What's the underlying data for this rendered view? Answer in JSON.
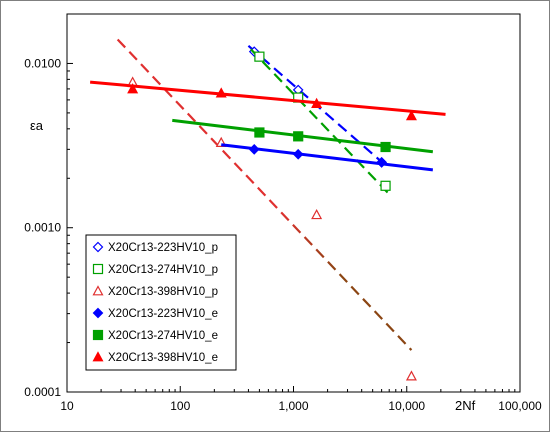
{
  "chart_data": {
    "type": "scatter",
    "title": "",
    "xlabel": "2Nf",
    "ylabel": "εa",
    "xscale": "log",
    "yscale": "log",
    "xlim": [
      10,
      100000
    ],
    "ylim": [
      0.0001,
      0.02
    ],
    "x_ticks": [
      10,
      100,
      1000,
      10000,
      100000
    ],
    "x_tick_labels": [
      "10",
      "100",
      "1,000",
      "10,000",
      "100,000"
    ],
    "y_ticks": [
      0.0001,
      0.001,
      0.01
    ],
    "y_tick_labels": [
      "0.0001",
      "0.0010",
      "0.0100"
    ],
    "grid": false,
    "legend_position": "bottom-left",
    "series": [
      {
        "name": "X20Cr13-223HV10_p",
        "color": "#0000ff",
        "marker": "diamond-open",
        "points": [
          [
            450,
            0.0118
          ],
          [
            1100,
            0.0069
          ],
          [
            6000,
            0.0025
          ]
        ],
        "fit": {
          "x": [
            400,
            6500
          ],
          "y": [
            0.0128,
            0.0024
          ],
          "style": "dashed"
        }
      },
      {
        "name": "X20Cr13-274HV10_p",
        "color": "#00a000",
        "marker": "square-open",
        "points": [
          [
            500,
            0.011
          ],
          [
            1100,
            0.0062
          ],
          [
            6500,
            0.0018
          ]
        ],
        "fit": {
          "x": [
            420,
            7000
          ],
          "y": [
            0.0122,
            0.0016
          ],
          "style": "dashed"
        }
      },
      {
        "name": "X20Cr13-398HV10_p",
        "color": "#e03030",
        "marker": "triangle-open",
        "points": [
          [
            38,
            0.0077
          ],
          [
            230,
            0.0033
          ],
          [
            1600,
            0.0012
          ],
          [
            11000,
            0.000125
          ]
        ],
        "fit": {
          "x": [
            28,
            11000
          ],
          "y": [
            0.014,
            0.00018
          ],
          "style": "dashed",
          "color_end": "#8b4513"
        }
      },
      {
        "name": "X20Cr13-223HV10_e",
        "color": "#0000ff",
        "marker": "diamond-filled",
        "points": [
          [
            450,
            0.003
          ],
          [
            1100,
            0.0028
          ],
          [
            6000,
            0.0025
          ]
        ],
        "fit": {
          "x": [
            230,
            17000
          ],
          "y": [
            0.0032,
            0.00225
          ],
          "style": "solid"
        }
      },
      {
        "name": "X20Cr13-274HV10_e",
        "color": "#00a000",
        "marker": "square-filled",
        "points": [
          [
            500,
            0.0038
          ],
          [
            1100,
            0.0036
          ],
          [
            6500,
            0.0031
          ]
        ],
        "fit": {
          "x": [
            85,
            17000
          ],
          "y": [
            0.0045,
            0.0029
          ],
          "style": "solid"
        }
      },
      {
        "name": "X20Cr13-398HV10_e",
        "color": "#ff0000",
        "marker": "triangle-filled",
        "points": [
          [
            38,
            0.007
          ],
          [
            230,
            0.0066
          ],
          [
            1600,
            0.0057
          ],
          [
            11000,
            0.0048
          ]
        ],
        "fit": {
          "x": [
            16,
            22000
          ],
          "y": [
            0.0077,
            0.0049
          ],
          "style": "solid"
        }
      }
    ]
  }
}
